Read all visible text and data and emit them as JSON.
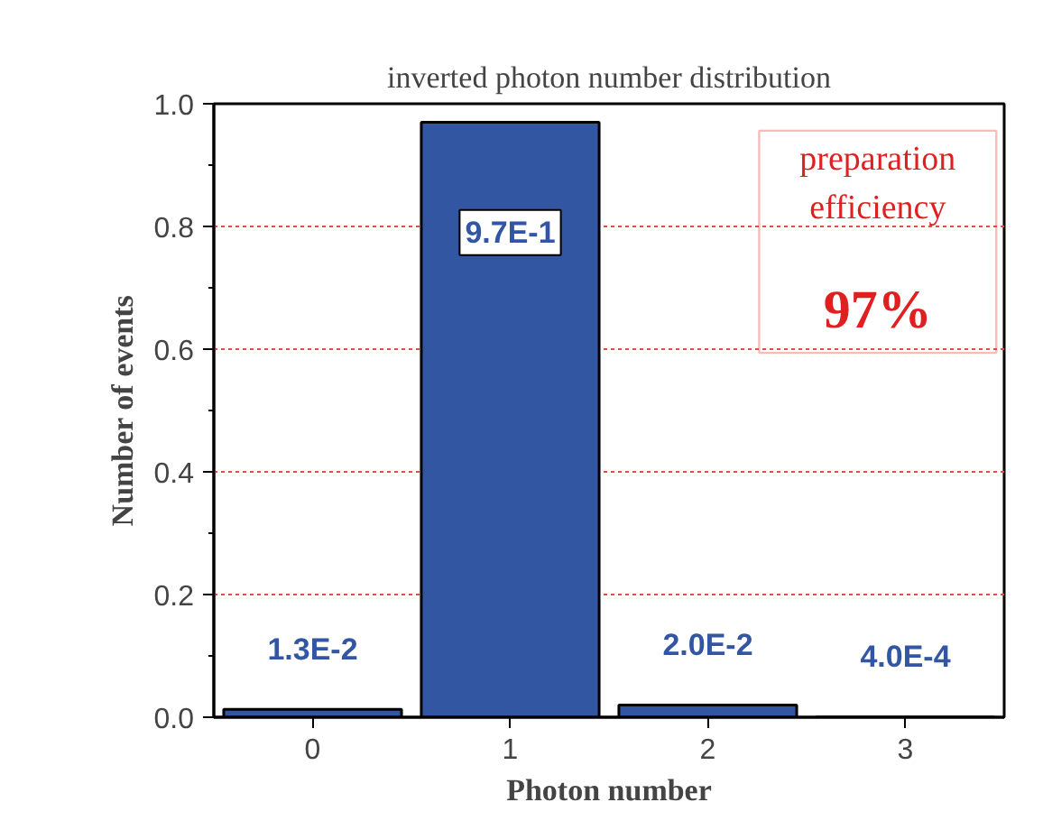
{
  "chart_data": {
    "type": "bar",
    "title": "inverted photon number distribution",
    "xlabel": "Photon number",
    "ylabel": "Number of events",
    "categories": [
      "0",
      "1",
      "2",
      "3"
    ],
    "values": [
      0.013,
      0.97,
      0.02,
      0.0004
    ],
    "value_labels": [
      "1.3E-2",
      "9.7E-1",
      "2.0E-2",
      "4.0E-4"
    ],
    "color": "#3356a3",
    "ylim": [
      0,
      1.0
    ],
    "yticks": [
      {
        "value": 0,
        "label": "0.0"
      },
      {
        "value": 0.2,
        "label": "0.2"
      },
      {
        "value": 0.4,
        "label": "0.4"
      },
      {
        "value": 0.6,
        "label": "0.6"
      },
      {
        "value": 0.8,
        "label": "0.8"
      },
      {
        "value": 1.0,
        "label": "1.0"
      }
    ],
    "grid": "y",
    "annotations": [
      "preparation efficiency",
      "97%"
    ]
  }
}
